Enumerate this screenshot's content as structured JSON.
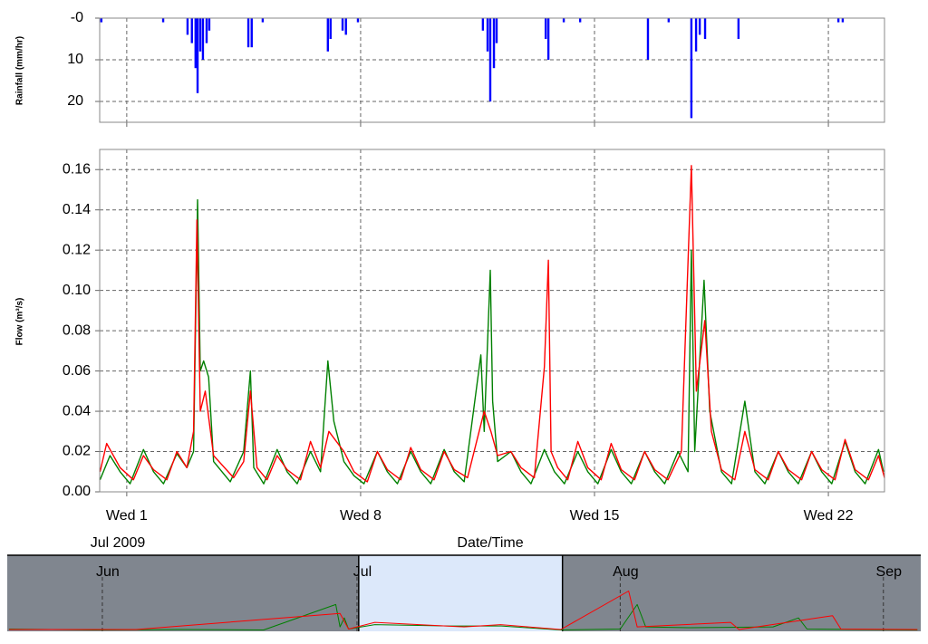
{
  "chart_data": [
    {
      "type": "bar",
      "ylabel": "Rainfall (mm/hr)",
      "color": "#0000ff",
      "y_inverted": true,
      "grid": true,
      "x": [
        0.24,
        2.09,
        2.82,
        2.95,
        3.06,
        3.12,
        3.2,
        3.28,
        3.39,
        3.47,
        4.64,
        4.74,
        5.07,
        7.02,
        7.1,
        7.46,
        7.56,
        7.92,
        11.66,
        11.8,
        11.88,
        11.99,
        12.07,
        13.54,
        13.62,
        14.08,
        14.57,
        16.6,
        17.22,
        17.9,
        18.04,
        18.15,
        18.31,
        19.31,
        22.3,
        22.43
      ],
      "values": [
        1,
        1,
        4,
        6,
        12,
        18,
        8,
        10,
        6,
        3,
        7,
        7,
        1,
        8,
        5,
        3,
        4,
        1,
        3,
        8,
        20,
        12,
        6,
        5,
        10,
        1,
        1,
        10,
        1,
        24,
        8,
        4,
        5,
        5,
        1,
        1
      ],
      "xlim": [
        0.19,
        23.68
      ],
      "xticks": [
        1,
        8,
        15,
        22
      ],
      "ylim": [
        0,
        25
      ],
      "yticks": [
        {
          "value": 0,
          "label": "-0"
        },
        10,
        20
      ]
    },
    {
      "type": "line",
      "ylabel": "Flow (m³/s)",
      "xlabel": "Date/Time",
      "annotation": "Jul 2009",
      "grid": true,
      "series": [
        {
          "color": "#008000",
          "x": [
            0.2,
            0.5,
            0.8,
            1.1,
            1.5,
            1.8,
            2.1,
            2.5,
            2.8,
            3.0,
            3.12,
            3.2,
            3.3,
            3.45,
            3.6,
            4.1,
            4.5,
            4.7,
            4.8,
            5.1,
            5.5,
            5.8,
            6.1,
            6.5,
            6.8,
            7.02,
            7.2,
            7.5,
            7.8,
            8.1,
            8.5,
            8.8,
            9.1,
            9.5,
            9.8,
            10.1,
            10.5,
            10.8,
            11.1,
            11.6,
            11.7,
            11.88,
            11.95,
            12.1,
            12.5,
            12.8,
            13.1,
            13.5,
            13.8,
            14.1,
            14.5,
            14.8,
            15.1,
            15.5,
            15.8,
            16.1,
            16.5,
            16.8,
            17.1,
            17.5,
            17.8,
            17.9,
            18.0,
            18.28,
            18.45,
            18.8,
            19.1,
            19.5,
            19.8,
            20.1,
            20.5,
            20.8,
            21.1,
            21.5,
            21.8,
            22.1,
            22.5,
            22.8,
            23.1,
            23.5,
            23.65
          ],
          "values": [
            0.006,
            0.018,
            0.01,
            0.004,
            0.021,
            0.01,
            0.004,
            0.019,
            0.012,
            0.02,
            0.145,
            0.06,
            0.065,
            0.057,
            0.015,
            0.005,
            0.02,
            0.06,
            0.012,
            0.004,
            0.021,
            0.01,
            0.004,
            0.02,
            0.01,
            0.065,
            0.035,
            0.015,
            0.008,
            0.004,
            0.02,
            0.01,
            0.004,
            0.02,
            0.01,
            0.004,
            0.021,
            0.01,
            0.005,
            0.068,
            0.03,
            0.11,
            0.045,
            0.015,
            0.02,
            0.01,
            0.004,
            0.021,
            0.01,
            0.004,
            0.02,
            0.01,
            0.004,
            0.021,
            0.01,
            0.004,
            0.02,
            0.01,
            0.004,
            0.02,
            0.01,
            0.12,
            0.02,
            0.105,
            0.04,
            0.01,
            0.004,
            0.045,
            0.01,
            0.004,
            0.02,
            0.01,
            0.004,
            0.02,
            0.01,
            0.004,
            0.025,
            0.01,
            0.004,
            0.021,
            0.01
          ]
        },
        {
          "color": "#ff0000",
          "x": [
            0.2,
            0.4,
            0.8,
            1.2,
            1.5,
            1.8,
            2.2,
            2.5,
            2.8,
            3.0,
            3.1,
            3.2,
            3.35,
            3.6,
            4.2,
            4.5,
            4.7,
            4.9,
            5.2,
            5.5,
            5.8,
            6.2,
            6.5,
            6.8,
            7.05,
            7.5,
            7.8,
            8.2,
            8.5,
            8.8,
            9.2,
            9.5,
            9.8,
            10.2,
            10.5,
            10.8,
            11.2,
            11.7,
            11.9,
            12.1,
            12.5,
            12.8,
            13.2,
            13.5,
            13.62,
            13.7,
            13.9,
            14.2,
            14.5,
            14.8,
            15.2,
            15.5,
            15.8,
            16.2,
            16.5,
            16.8,
            17.2,
            17.6,
            17.9,
            18.05,
            18.3,
            18.5,
            18.8,
            19.2,
            19.5,
            19.8,
            20.2,
            20.5,
            20.8,
            21.2,
            21.5,
            21.8,
            22.2,
            22.5,
            22.8,
            23.2,
            23.5,
            23.68
          ],
          "values": [
            0.01,
            0.024,
            0.012,
            0.006,
            0.018,
            0.011,
            0.006,
            0.02,
            0.012,
            0.03,
            0.135,
            0.04,
            0.05,
            0.018,
            0.007,
            0.015,
            0.05,
            0.012,
            0.006,
            0.018,
            0.011,
            0.006,
            0.025,
            0.012,
            0.03,
            0.02,
            0.01,
            0.005,
            0.02,
            0.011,
            0.006,
            0.022,
            0.011,
            0.006,
            0.02,
            0.011,
            0.007,
            0.04,
            0.03,
            0.018,
            0.02,
            0.012,
            0.007,
            0.062,
            0.115,
            0.02,
            0.012,
            0.006,
            0.025,
            0.012,
            0.006,
            0.024,
            0.011,
            0.006,
            0.02,
            0.011,
            0.006,
            0.02,
            0.162,
            0.05,
            0.085,
            0.03,
            0.011,
            0.006,
            0.03,
            0.011,
            0.006,
            0.02,
            0.011,
            0.006,
            0.02,
            0.011,
            0.006,
            0.026,
            0.011,
            0.006,
            0.018,
            0.007
          ]
        }
      ],
      "xlim": [
        0.19,
        23.68
      ],
      "xticks": [
        {
          "value": 1,
          "label": "Wed 1"
        },
        {
          "value": 8,
          "label": "Wed 8"
        },
        {
          "value": 15,
          "label": "Wed 15"
        },
        {
          "value": 22,
          "label": "Wed 22"
        }
      ],
      "ylim": [
        0,
        0.17
      ],
      "yticks": [
        {
          "value": 0,
          "label": "0.00"
        },
        0.02,
        0.04,
        0.06,
        0.08,
        {
          "value": 0.1,
          "label": "0.10"
        },
        0.12,
        0.14,
        0.16
      ]
    },
    {
      "type": "line",
      "selection": [
        1.2,
        25.2
      ],
      "series": [
        {
          "color": "#008000",
          "x": [
            -40,
            -30,
            -20,
            -10,
            -1.5,
            -1,
            -0.5,
            0,
            3.1,
            11.9,
            18,
            25,
            32,
            34,
            35,
            40,
            50,
            53,
            54,
            60,
            67
          ],
          "values": [
            0.005,
            0.003,
            0.004,
            0.003,
            0.06,
            0.01,
            0.03,
            0.005,
            0.015,
            0.012,
            0.012,
            0.003,
            0.005,
            0.06,
            0.01,
            0.008,
            0.01,
            0.03,
            0.005,
            0.004,
            0.003
          ]
        },
        {
          "color": "#ff0000",
          "x": [
            -40,
            -25,
            -1,
            0,
            3.1,
            13.6,
            17.9,
            25,
            33,
            34,
            45,
            46,
            57,
            58,
            67
          ],
          "values": [
            0.004,
            0.004,
            0.04,
            0.005,
            0.02,
            0.01,
            0.015,
            0.004,
            0.09,
            0.01,
            0.02,
            0.004,
            0.035,
            0.005,
            0.004
          ]
        }
      ],
      "xlim": [
        -40.2,
        67.4
      ],
      "xticks": [
        {
          "value": -29,
          "label": "Jun"
        },
        {
          "value": 1,
          "label": "Jul"
        },
        {
          "value": 32,
          "label": "Aug"
        },
        {
          "value": 63,
          "label": "Sep"
        }
      ],
      "ylim": [
        0,
        0.17
      ]
    }
  ]
}
